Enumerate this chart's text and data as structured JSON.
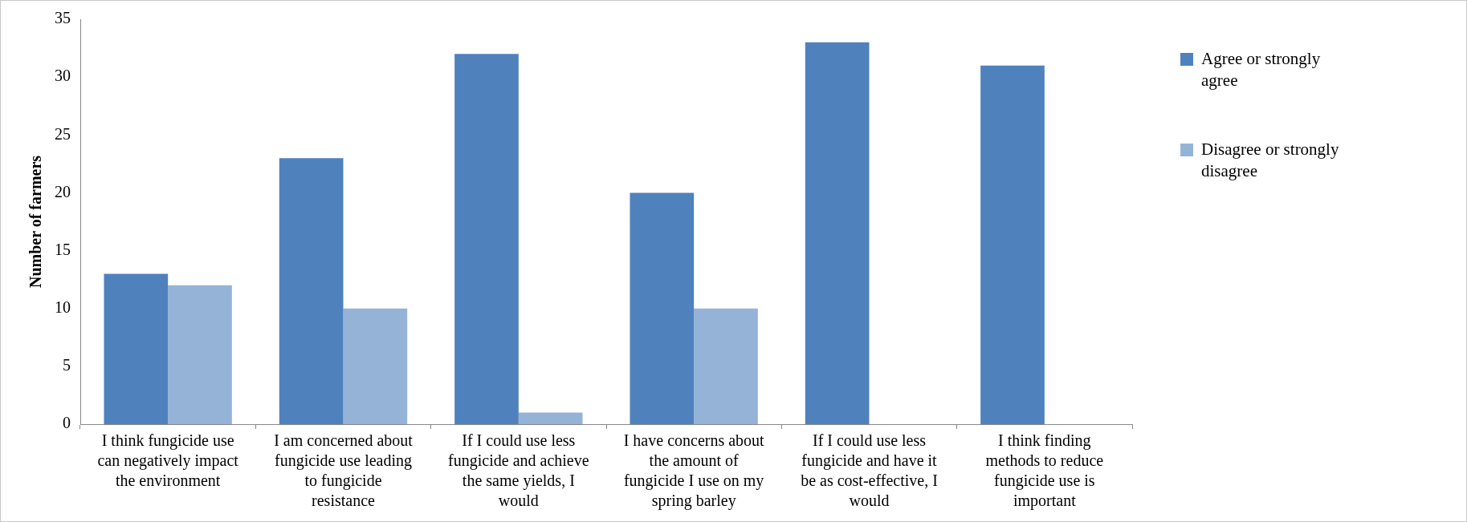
{
  "chart_data": {
    "type": "bar",
    "ylabel": "Number of farmers",
    "categories": [
      "I think fungicide use can negatively impact the environment",
      "I am concerned about fungicide use leading to fungicide resistance",
      "If I could use less fungicide and achieve the same yields, I would",
      "I have concerns about the amount of fungicide I use on my spring barley",
      "If I could use less fungicide and have it be as cost-effective, I would",
      "I think finding methods to reduce fungicide use is important"
    ],
    "series": [
      {
        "name": "Agree or strongly agree",
        "color": "#4f81bd",
        "values": [
          13,
          23,
          32,
          20,
          33,
          31
        ]
      },
      {
        "name": "Disagree or strongly disagree",
        "color": "#95b3d7",
        "values": [
          12,
          10,
          1,
          10,
          0,
          0
        ]
      }
    ],
    "ylim": [
      0,
      35
    ],
    "yticks": [
      0,
      5,
      10,
      15,
      20,
      25,
      30,
      35
    ],
    "grid": false,
    "legend": "right"
  }
}
